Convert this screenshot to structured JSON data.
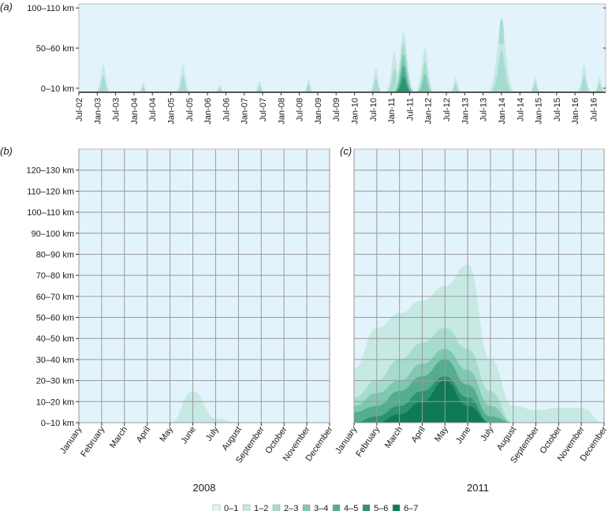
{
  "colors": {
    "background": "#e3f3fb",
    "grid": "#9a9a9a",
    "levels": [
      "#e3f3fb",
      "#c6e9e4",
      "#a6dccf",
      "#7fc8b1",
      "#53ae8f",
      "#2c9271",
      "#107a57"
    ]
  },
  "legend": {
    "labels": [
      "0–1",
      "1–2",
      "2–3",
      "3–4",
      "4–5",
      "5–6",
      "6–7"
    ]
  },
  "chart_data": [
    {
      "panel_label": "(a)",
      "type": "heatmap",
      "x_tick_labels": [
        "Jul-02",
        "Jan-03",
        "Jul-03",
        "Jan-04",
        "Jul-04",
        "Jan-05",
        "Jul-05",
        "Jan-06",
        "Jul-06",
        "Jan-07",
        "Jul-07",
        "Jan-08",
        "Jul-08",
        "Jan-09",
        "Jul-09",
        "Jan-10",
        "Jul-10",
        "Jan-11",
        "Jul-11",
        "Jan-12",
        "Jul-12",
        "Jan-13",
        "Jul-13",
        "Jan-14",
        "Jul-14",
        "Jan-15",
        "Jul-15",
        "Jan-16",
        "Jul-16"
      ],
      "y_tick_labels": [
        "100–110 km",
        "50–60 km",
        "0–10 km"
      ],
      "x_range_months": [
        0,
        172
      ],
      "y_range_km": [
        0,
        110
      ],
      "hotspots": [
        {
          "month": 8,
          "peak_km": 35,
          "level": 2
        },
        {
          "month": 21,
          "peak_km": 12,
          "level": 2
        },
        {
          "month": 34,
          "peak_km": 35,
          "level": 2
        },
        {
          "month": 46,
          "peak_km": 10,
          "level": 2
        },
        {
          "month": 59,
          "peak_km": 14,
          "level": 2
        },
        {
          "month": 75,
          "peak_km": 16,
          "level": 2
        },
        {
          "month": 97,
          "peak_km": 30,
          "level": 2
        },
        {
          "month": 103,
          "peak_km": 50,
          "level": 2
        },
        {
          "month": 106,
          "peak_km": 75,
          "level": 5
        },
        {
          "month": 113,
          "peak_km": 55,
          "level": 3
        },
        {
          "month": 123,
          "peak_km": 20,
          "level": 2
        },
        {
          "month": 138,
          "peak_km": 90,
          "level": 2
        },
        {
          "month": 149,
          "peak_km": 20,
          "level": 2
        },
        {
          "month": 165,
          "peak_km": 35,
          "level": 2
        },
        {
          "month": 170,
          "peak_km": 20,
          "level": 2
        }
      ]
    },
    {
      "panel_label": "(b)",
      "type": "heatmap",
      "year": "2008",
      "categories": [
        "January",
        "February",
        "March",
        "April",
        "May",
        "June",
        "July",
        "August",
        "September",
        "October",
        "November",
        "December"
      ],
      "y_tick_labels": [
        "0–10 km",
        "10–20 km",
        "20–30 km",
        "30–40 km",
        "40–50 km",
        "50–60 km",
        "60–70 km",
        "70–80 km",
        "80–90 km",
        "90–100 km",
        "100–110 km",
        "110–120 km",
        "120–130 km"
      ],
      "y_range_km": [
        0,
        130
      ],
      "series": [
        {
          "name": "1–2",
          "level": 1,
          "values": [
            0,
            0,
            0,
            0,
            0,
            15,
            2,
            0,
            0,
            0,
            0,
            0
          ]
        }
      ]
    },
    {
      "panel_label": "(c)",
      "type": "heatmap",
      "year": "2011",
      "categories": [
        "January",
        "February",
        "March",
        "April",
        "May",
        "June",
        "July",
        "August",
        "September",
        "October",
        "November",
        "December"
      ],
      "y_tick_labels": [
        "0–10 km",
        "10–20 km",
        "20–30 km",
        "30–40 km",
        "40–50 km",
        "50–60 km",
        "60–70 km",
        "70–80 km",
        "80–90 km",
        "90–100 km",
        "100–110 km",
        "110–120 km",
        "120–130 km"
      ],
      "y_range_km": [
        0,
        130
      ],
      "series": [
        {
          "name": "1–2",
          "level": 1,
          "values": [
            26,
            45,
            52,
            58,
            65,
            75,
            30,
            8,
            6,
            7,
            7,
            0
          ]
        },
        {
          "name": "2–3",
          "level": 2,
          "values": [
            12,
            20,
            30,
            38,
            45,
            35,
            15,
            0,
            0,
            0,
            0,
            0
          ]
        },
        {
          "name": "3–4",
          "level": 3,
          "values": [
            8,
            14,
            20,
            28,
            35,
            25,
            8,
            0,
            0,
            0,
            0,
            0
          ]
        },
        {
          "name": "4–5",
          "level": 4,
          "values": [
            5,
            8,
            15,
            22,
            30,
            18,
            3,
            0,
            0,
            0,
            0,
            0
          ]
        },
        {
          "name": "5–6",
          "level": 5,
          "values": [
            0,
            3,
            8,
            15,
            22,
            12,
            0,
            0,
            0,
            0,
            0,
            0
          ]
        },
        {
          "name": "6–7",
          "level": 6,
          "values": [
            0,
            0,
            4,
            10,
            20,
            8,
            0,
            0,
            0,
            0,
            0,
            0
          ]
        }
      ]
    }
  ]
}
